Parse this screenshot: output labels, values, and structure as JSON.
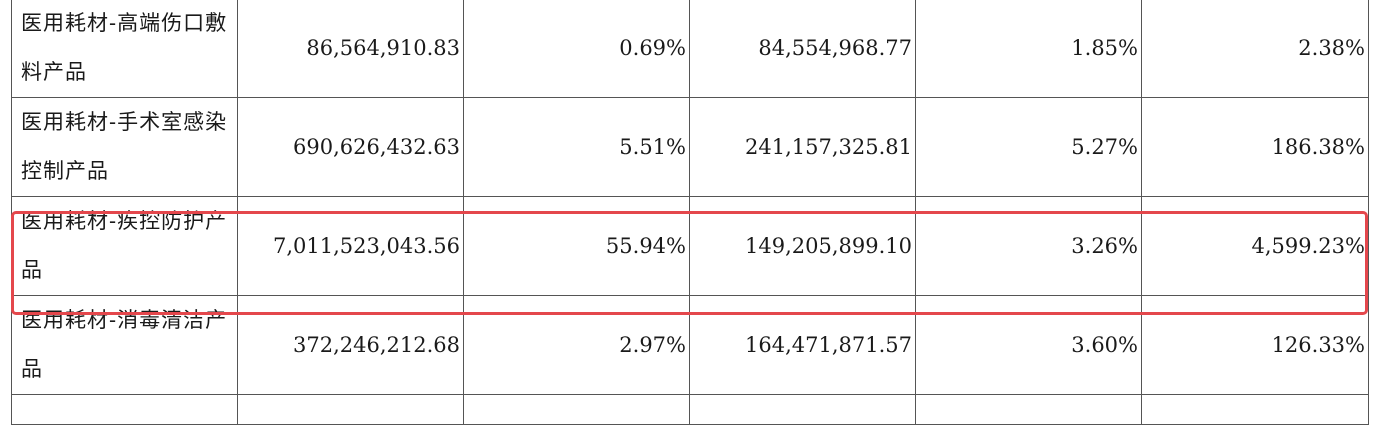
{
  "table": {
    "rows": [
      {
        "label": "医用耗材-高端伤口敷料产品",
        "cells": [
          "86,564,910.83",
          "0.69%",
          "84,554,968.77",
          "1.85%",
          "2.38%"
        ]
      },
      {
        "label": "医用耗材-手术室感染控制产品",
        "cells": [
          "690,626,432.63",
          "5.51%",
          "241,157,325.81",
          "5.27%",
          "186.38%"
        ]
      },
      {
        "label": "医用耗材-疾控防护产品",
        "cells": [
          "7,011,523,043.56",
          "55.94%",
          "149,205,899.10",
          "3.26%",
          "4,599.23%"
        ]
      },
      {
        "label": "医用耗材-消毒清洁产品",
        "cells": [
          "372,246,212.68",
          "2.97%",
          "164,471,871.57",
          "3.60%",
          "126.33%"
        ]
      }
    ]
  },
  "highlight": {
    "row_index": 2,
    "color": "#e4474c"
  }
}
